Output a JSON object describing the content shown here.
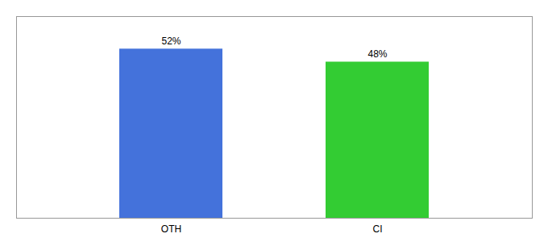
{
  "chart_data": {
    "type": "bar",
    "categories": [
      "OTH",
      "CI"
    ],
    "values": [
      52,
      48
    ],
    "value_labels": [
      "52%",
      "48%"
    ],
    "colors": [
      "#4472db",
      "#33cc33"
    ],
    "ylim": [
      0,
      62
    ],
    "data_labels": true,
    "tick_labels": "x",
    "grid": false
  }
}
